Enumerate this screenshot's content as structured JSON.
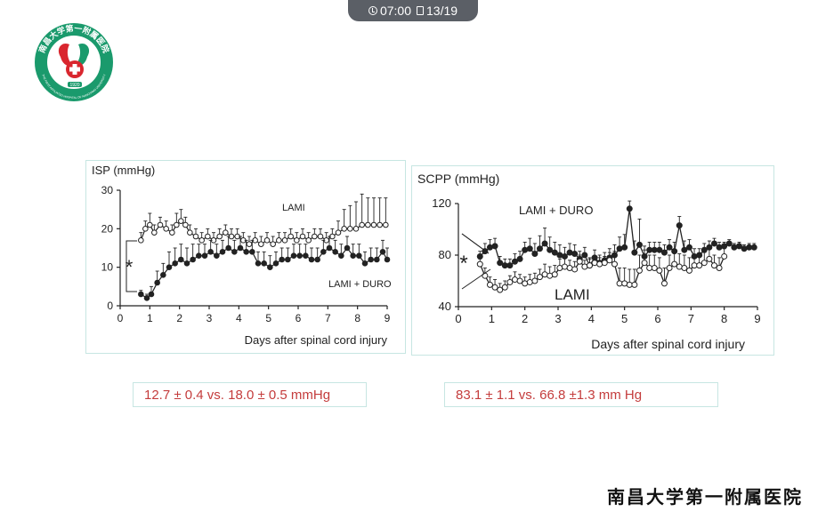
{
  "player": {
    "time": "07:00",
    "slide": "13/19"
  },
  "logo": {
    "name": "南昌大学第一附属医院",
    "english": "THE FIRST AFFILIATED HOSPITAL OF NANCHANG UNIVERSITY",
    "year": "1920"
  },
  "footer": {
    "hospital_name": "南昌大学第一附属医院"
  },
  "results": {
    "isp": "12.7 ± 0.4 vs. 18.0 ± 0.5 mmHg",
    "scpp": "83.1 ± 1.1 vs. 66.8 ±1.3 mm Hg"
  },
  "colors": {
    "panel_border": "#c7e6e2",
    "result_text": "#c43c3c",
    "logo_green": "#1a9a6c",
    "logo_red": "#d9262e"
  },
  "chart_data": [
    {
      "type": "line",
      "ylabel": "ISP (mmHg)",
      "xlabel": "Days after spinal cord injury",
      "xlim": [
        0,
        9
      ],
      "ylim": [
        0,
        30
      ],
      "xticks": [
        0,
        1,
        2,
        3,
        4,
        5,
        6,
        7,
        8,
        9
      ],
      "yticks": [
        0,
        10,
        20,
        30
      ],
      "significance_marker": "*",
      "grid": false,
      "series": [
        {
          "name": "LAMI",
          "marker": "open-circle",
          "x": [
            0.7,
            0.85,
            1.0,
            1.15,
            1.35,
            1.55,
            1.75,
            1.9,
            2.05,
            2.2,
            2.35,
            2.55,
            2.75,
            2.95,
            3.15,
            3.35,
            3.55,
            3.75,
            3.95,
            4.15,
            4.35,
            4.55,
            4.75,
            4.95,
            5.15,
            5.35,
            5.55,
            5.75,
            5.95,
            6.15,
            6.35,
            6.55,
            6.75,
            6.95,
            7.15,
            7.35,
            7.55,
            7.75,
            7.95,
            8.15,
            8.35,
            8.55,
            8.75,
            8.95
          ],
          "y": [
            17,
            20,
            21,
            19,
            21,
            20,
            19,
            21,
            22,
            21,
            19,
            18,
            17,
            18,
            17,
            18,
            19,
            18,
            18,
            17,
            16,
            17,
            16,
            17,
            16,
            17,
            17,
            18,
            17,
            18,
            17,
            18,
            18,
            17,
            18,
            19,
            20,
            20,
            20,
            21,
            21,
            21,
            21,
            21
          ],
          "error": [
            2,
            2,
            3,
            2,
            2,
            2,
            2,
            3,
            3,
            2,
            2,
            2,
            2,
            2,
            2,
            2,
            2,
            2,
            2,
            2,
            2,
            2,
            2,
            2,
            2,
            2,
            2,
            2,
            2,
            2,
            2,
            2,
            2,
            2,
            2,
            3,
            5,
            6,
            7,
            8,
            7,
            7,
            7,
            7
          ]
        },
        {
          "name": "LAMI + DURO",
          "marker": "filled-circle",
          "x": [
            0.7,
            0.9,
            1.05,
            1.25,
            1.45,
            1.65,
            1.85,
            2.05,
            2.25,
            2.45,
            2.65,
            2.85,
            3.05,
            3.25,
            3.45,
            3.65,
            3.85,
            4.05,
            4.25,
            4.45,
            4.65,
            4.85,
            5.05,
            5.25,
            5.45,
            5.65,
            5.85,
            6.05,
            6.25,
            6.45,
            6.65,
            6.85,
            7.05,
            7.25,
            7.45,
            7.65,
            7.85,
            8.05,
            8.25,
            8.45,
            8.65,
            8.85,
            9.0
          ],
          "y": [
            3,
            2,
            3,
            6,
            8,
            10,
            11,
            12,
            11,
            12,
            13,
            13,
            14,
            13,
            14,
            15,
            14,
            15,
            14,
            14,
            11,
            11,
            10,
            11,
            12,
            12,
            13,
            13,
            13,
            12,
            12,
            14,
            15,
            14,
            13,
            15,
            13,
            13,
            11,
            12,
            12,
            14,
            12
          ],
          "error": [
            1,
            1,
            2,
            3,
            3,
            4,
            4,
            4,
            4,
            4,
            3,
            3,
            3,
            3,
            3,
            3,
            3,
            3,
            3,
            3,
            3,
            3,
            3,
            3,
            3,
            3,
            3,
            3,
            3,
            3,
            3,
            3,
            3,
            3,
            3,
            3,
            3,
            3,
            3,
            3,
            3,
            3,
            3
          ]
        }
      ]
    },
    {
      "type": "line",
      "ylabel": "SCPP (mmHg)",
      "xlabel": "Days after spinal cord injury",
      "xlim": [
        0,
        9
      ],
      "ylim": [
        40,
        120
      ],
      "xticks": [
        0,
        1,
        2,
        3,
        4,
        5,
        6,
        7,
        8,
        9
      ],
      "yticks": [
        40,
        80,
        120
      ],
      "significance_marker": "*",
      "grid": false,
      "series": [
        {
          "name": "LAMI + DURO",
          "marker": "filled-circle",
          "x": [
            0.65,
            0.8,
            0.95,
            1.1,
            1.25,
            1.4,
            1.55,
            1.7,
            1.85,
            2.0,
            2.15,
            2.3,
            2.45,
            2.6,
            2.75,
            2.9,
            3.05,
            3.2,
            3.35,
            3.5,
            3.65,
            3.8,
            3.95,
            4.1,
            4.25,
            4.4,
            4.55,
            4.7,
            4.85,
            5.0,
            5.15,
            5.3,
            5.45,
            5.6,
            5.75,
            5.9,
            6.05,
            6.2,
            6.35,
            6.5,
            6.65,
            6.8,
            6.95,
            7.1,
            7.25,
            7.4,
            7.55,
            7.7,
            7.85,
            8.0,
            8.15,
            8.3,
            8.45,
            8.6,
            8.75,
            8.9
          ],
          "y": [
            79,
            83,
            86,
            87,
            74,
            72,
            72,
            75,
            77,
            84,
            85,
            81,
            85,
            89,
            84,
            82,
            80,
            79,
            82,
            81,
            77,
            80,
            72,
            78,
            74,
            76,
            78,
            80,
            85,
            86,
            116,
            82,
            88,
            79,
            84,
            84,
            84,
            82,
            86,
            83,
            103,
            84,
            86,
            79,
            80,
            84,
            86,
            89,
            86,
            87,
            89,
            86,
            87,
            85,
            86,
            86
          ],
          "error": [
            4,
            6,
            6,
            6,
            5,
            5,
            5,
            6,
            6,
            6,
            8,
            8,
            10,
            12,
            10,
            8,
            8,
            7,
            7,
            7,
            6,
            6,
            6,
            6,
            6,
            6,
            7,
            8,
            9,
            10,
            6,
            9,
            20,
            8,
            6,
            6,
            6,
            6,
            6,
            7,
            7,
            7,
            6,
            6,
            5,
            5,
            5,
            4,
            4,
            3,
            3,
            3,
            3,
            3,
            3,
            3
          ]
        },
        {
          "name": "LAMI",
          "marker": "open-circle",
          "x": [
            0.65,
            0.8,
            0.95,
            1.1,
            1.25,
            1.4,
            1.55,
            1.7,
            1.85,
            2.0,
            2.15,
            2.3,
            2.45,
            2.6,
            2.75,
            2.9,
            3.05,
            3.2,
            3.35,
            3.5,
            3.65,
            3.8,
            3.95,
            4.1,
            4.25,
            4.4,
            4.55,
            4.7,
            4.85,
            5.0,
            5.15,
            5.3,
            5.45,
            5.6,
            5.75,
            5.9,
            6.05,
            6.2,
            6.35,
            6.5,
            6.65,
            6.8,
            6.95,
            7.1,
            7.25,
            7.4,
            7.55,
            7.7,
            7.85,
            8.0
          ],
          "y": [
            73,
            64,
            57,
            55,
            53,
            55,
            59,
            61,
            60,
            58,
            59,
            60,
            63,
            65,
            64,
            65,
            70,
            71,
            70,
            69,
            75,
            71,
            72,
            74,
            73,
            74,
            76,
            73,
            58,
            58,
            57,
            57,
            68,
            74,
            70,
            70,
            68,
            58,
            70,
            73,
            71,
            70,
            68,
            72,
            72,
            74,
            77,
            72,
            70,
            79
          ],
          "error": [
            4,
            6,
            6,
            6,
            5,
            5,
            5,
            6,
            5,
            5,
            6,
            6,
            6,
            8,
            7,
            7,
            7,
            7,
            6,
            6,
            5,
            5,
            5,
            5,
            5,
            5,
            6,
            10,
            12,
            12,
            12,
            12,
            12,
            10,
            10,
            10,
            10,
            12,
            10,
            10,
            10,
            10,
            10,
            8,
            8,
            8,
            8,
            8,
            8,
            6
          ]
        }
      ]
    }
  ]
}
